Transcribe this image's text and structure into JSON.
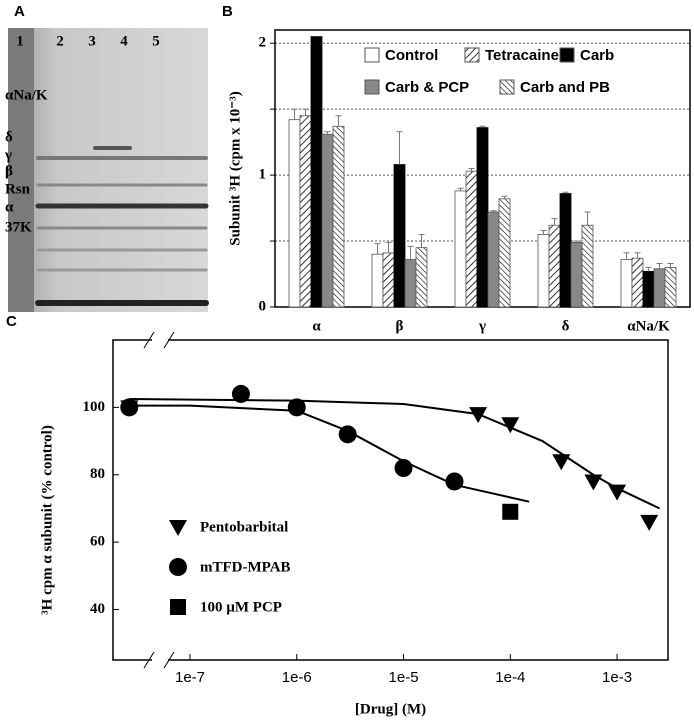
{
  "gel": {
    "panel_label": "A",
    "lanes": [
      "1",
      "2",
      "3",
      "4",
      "5"
    ],
    "bands": [
      "αNa/K",
      "δ",
      "γ",
      "β",
      "Rsn",
      "α",
      "37K"
    ]
  },
  "chart_data": [
    {
      "type": "bar",
      "panel_label": "B",
      "y_label": "Subunit ³H (cpm x 10⁻³)",
      "categories": [
        "α",
        "β",
        "γ",
        "δ",
        "αNa/K"
      ],
      "ylim": [
        0,
        2.1
      ],
      "yticks": [
        0,
        1,
        2
      ],
      "minor_yticks": [
        0.5,
        1.5
      ],
      "grid": true,
      "series": [
        {
          "name": "Control",
          "color": "#ffffff",
          "pattern": "none",
          "values": [
            1.42,
            0.4,
            0.88,
            0.55,
            0.36
          ],
          "errors": [
            0.08,
            0.08,
            0.02,
            0.03,
            0.05
          ]
        },
        {
          "name": "Tetracaine",
          "color": "#ffffff",
          "pattern": "hatch",
          "values": [
            1.45,
            0.41,
            1.03,
            0.62,
            0.37
          ],
          "errors": [
            0.05,
            0.08,
            0.02,
            0.05,
            0.04
          ]
        },
        {
          "name": "Carb",
          "color": "#000000",
          "pattern": "none",
          "values": [
            2.05,
            1.08,
            1.36,
            0.86,
            0.27
          ],
          "errors": [
            0,
            0.25,
            0.01,
            0.01,
            0.03
          ]
        },
        {
          "name": "Carb & PCP",
          "color": "#888888",
          "pattern": "none",
          "values": [
            1.31,
            0.36,
            0.72,
            0.49,
            0.29
          ],
          "errors": [
            0.02,
            0.1,
            0.01,
            0.01,
            0.04
          ]
        },
        {
          "name": "Carb and PB",
          "color": "#ffffff",
          "pattern": "hatch-back",
          "values": [
            1.37,
            0.45,
            0.82,
            0.62,
            0.3
          ],
          "errors": [
            0.08,
            0.1,
            0.02,
            0.1,
            0.03
          ]
        }
      ]
    },
    {
      "type": "scatter",
      "panel_label": "C",
      "x_label": "[Drug] (M)",
      "y_label": "³H cpm α subunit (% control)",
      "log_x": true,
      "xlim": [
        1.9e-08,
        0.003
      ],
      "ylim": [
        25,
        120
      ],
      "xticks": [
        {
          "value": 1e-07,
          "label": "1e-7"
        },
        {
          "value": 1e-06,
          "label": "1e-6"
        },
        {
          "value": 1e-05,
          "label": "1e-5"
        },
        {
          "value": 0.0001,
          "label": "1e-4"
        },
        {
          "value": 0.001,
          "label": "1e-3"
        }
      ],
      "yticks": [
        40,
        60,
        80,
        100
      ],
      "series": [
        {
          "name": "Pentobarbital",
          "color": "#000000",
          "marker": "triangle-down",
          "x": [
            2.7e-08,
            5e-05,
            0.0001,
            0.0003,
            0.0006,
            0.001,
            0.002
          ],
          "values": [
            100,
            98,
            95,
            84,
            78,
            75,
            66
          ],
          "fit": {
            "x": [
              2.7e-08,
              1e-06,
              1e-05,
              5e-05,
              0.0002,
              0.0006,
              0.001,
              0.0025
            ],
            "values": [
              102.5,
              102,
              101,
              98,
              90,
              80,
              76,
              70
            ]
          }
        },
        {
          "name": "mTFD-MPAB",
          "color": "#000000",
          "marker": "circle",
          "x": [
            2.7e-08,
            3e-07,
            1e-06,
            3e-06,
            1e-05,
            3e-05
          ],
          "values": [
            100,
            104,
            100,
            92,
            82,
            78
          ],
          "fit": {
            "x": [
              2.7e-08,
              1e-07,
              1e-06,
              3e-06,
              1e-05,
              3e-05,
              0.00015
            ],
            "values": [
              100.5,
              100.5,
              99,
              93,
              84,
              77,
              72
            ]
          }
        },
        {
          "name": "100 µM PCP",
          "color": "#000000",
          "marker": "square",
          "x": [
            0.0001
          ],
          "values": [
            69
          ]
        }
      ]
    }
  ]
}
